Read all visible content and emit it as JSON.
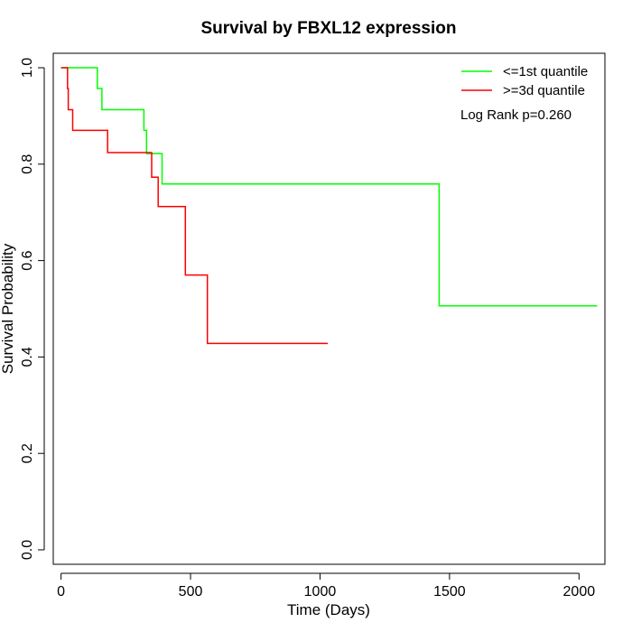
{
  "chart_data": {
    "type": "line",
    "title": "Survival by FBXL12 expression",
    "xlabel": "Time (Days)",
    "ylabel": "Survival Probability",
    "xlim": [
      -30,
      2100
    ],
    "ylim": [
      -0.03,
      1.03
    ],
    "x_ticks": [
      0,
      500,
      1000,
      1500,
      2000
    ],
    "y_ticks": [
      0.0,
      0.2,
      0.4,
      0.6,
      0.8,
      1.0
    ],
    "x_tick_labels": [
      "0",
      "500",
      "1000",
      "1500",
      "2000"
    ],
    "y_tick_labels": [
      "0.0",
      "0.2",
      "0.4",
      "0.6",
      "0.8",
      "1.0"
    ],
    "grid": false,
    "legend_position": "top-right",
    "annotation": "Log Rank p=0.260",
    "series": [
      {
        "name": "<=1st quantile",
        "color": "#00ff00",
        "step": true,
        "points": [
          [
            0,
            1.0
          ],
          [
            140,
            1.0
          ],
          [
            140,
            0.957
          ],
          [
            158,
            0.957
          ],
          [
            158,
            0.913
          ],
          [
            320,
            0.913
          ],
          [
            320,
            0.87
          ],
          [
            330,
            0.87
          ],
          [
            330,
            0.822
          ],
          [
            390,
            0.822
          ],
          [
            390,
            0.759
          ],
          [
            1460,
            0.759
          ],
          [
            1460,
            0.506
          ],
          [
            2070,
            0.506
          ]
        ]
      },
      {
        "name": ">=3d quantile",
        "color": "#ff0000",
        "step": true,
        "points": [
          [
            0,
            1.0
          ],
          [
            25,
            1.0
          ],
          [
            25,
            0.957
          ],
          [
            28,
            0.957
          ],
          [
            28,
            0.913
          ],
          [
            45,
            0.913
          ],
          [
            45,
            0.87
          ],
          [
            180,
            0.87
          ],
          [
            180,
            0.824
          ],
          [
            350,
            0.824
          ],
          [
            350,
            0.773
          ],
          [
            375,
            0.773
          ],
          [
            375,
            0.712
          ],
          [
            480,
            0.712
          ],
          [
            480,
            0.57
          ],
          [
            565,
            0.57
          ],
          [
            565,
            0.428
          ],
          [
            1030,
            0.428
          ]
        ]
      }
    ]
  }
}
